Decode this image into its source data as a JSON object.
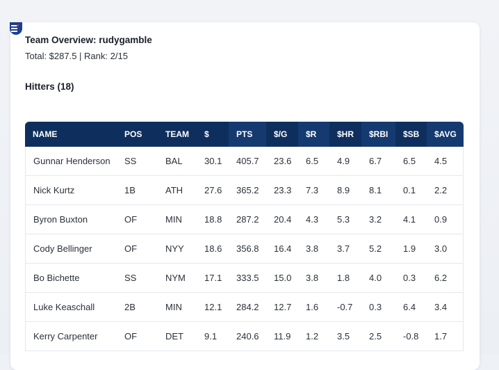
{
  "team": {
    "title": "Team Overview: rudygamble",
    "summary": "Total: $287.5 | Rank: 2/15"
  },
  "hitters": {
    "section_title": "Hitters (18)",
    "columns": [
      "NAME",
      "POS",
      "TEAM",
      "$",
      "PTS",
      "$/G",
      "$R",
      "$HR",
      "$RBI",
      "$SB",
      "$AVG"
    ],
    "rows": [
      [
        "Gunnar Henderson",
        "SS",
        "BAL",
        "30.1",
        "405.7",
        "23.6",
        "6.5",
        "4.9",
        "6.7",
        "6.5",
        "4.5"
      ],
      [
        "Nick Kurtz",
        "1B",
        "ATH",
        "27.6",
        "365.2",
        "23.3",
        "7.3",
        "8.9",
        "8.1",
        "0.1",
        "2.2"
      ],
      [
        "Byron Buxton",
        "OF",
        "MIN",
        "18.8",
        "287.2",
        "20.4",
        "4.3",
        "5.3",
        "3.2",
        "4.1",
        "0.9"
      ],
      [
        "Cody Bellinger",
        "OF",
        "NYY",
        "18.6",
        "356.8",
        "16.4",
        "3.8",
        "3.7",
        "5.2",
        "1.9",
        "3.0"
      ],
      [
        "Bo Bichette",
        "SS",
        "NYM",
        "17.1",
        "333.5",
        "15.0",
        "3.8",
        "1.8",
        "4.0",
        "0.3",
        "6.2"
      ],
      [
        "Luke Keaschall",
        "2B",
        "MIN",
        "12.1",
        "284.2",
        "12.7",
        "1.6",
        "-0.7",
        "0.3",
        "6.4",
        "3.4"
      ],
      [
        "Kerry Carpenter",
        "OF",
        "DET",
        "9.1",
        "240.6",
        "11.9",
        "1.2",
        "3.5",
        "2.5",
        "-0.8",
        "1.7"
      ]
    ]
  },
  "colors": {
    "header_bg": "#0e2f5e",
    "header_sorted_bg": "#143a70",
    "brand": "#1a3f8f"
  },
  "icons": {
    "logo": "league-logo-icon"
  }
}
